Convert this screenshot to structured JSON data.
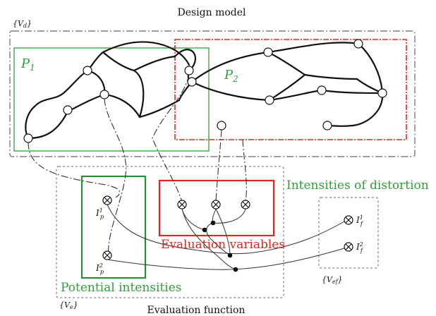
{
  "diagram": {
    "title": "Design model",
    "vd_label": "{V",
    "vd_sub": "d",
    "vd_close": "}",
    "p1_label": "P",
    "p1_sub": "1",
    "p2_label": "P",
    "p2_sub": "2",
    "distortion_label": "Intensities of distortion",
    "eval_vars_label": "Evaluation variables",
    "potential_label": "Potential intensities",
    "ve_label": "{V",
    "ve_sub": "e",
    "ve_close": "}",
    "vef_label": "{V",
    "vef_sub": "ef",
    "vef_close": "}",
    "eval_function_label": "Evaluation function",
    "ip1_label": "I",
    "ip1_sup": "1",
    "ip1_sub": "p",
    "ip2_label": "I",
    "ip2_sup": "2",
    "ip2_sub": "p",
    "if1_label": "I",
    "if1_sup": "1",
    "if1_sub": "f",
    "if2_label": "I",
    "if2_sup": "2",
    "if2_sub": "f"
  },
  "colors": {
    "green": "#2e9e3a",
    "red": "#e0261f",
    "ink": "#111111",
    "dashed_gray": "#666666"
  }
}
